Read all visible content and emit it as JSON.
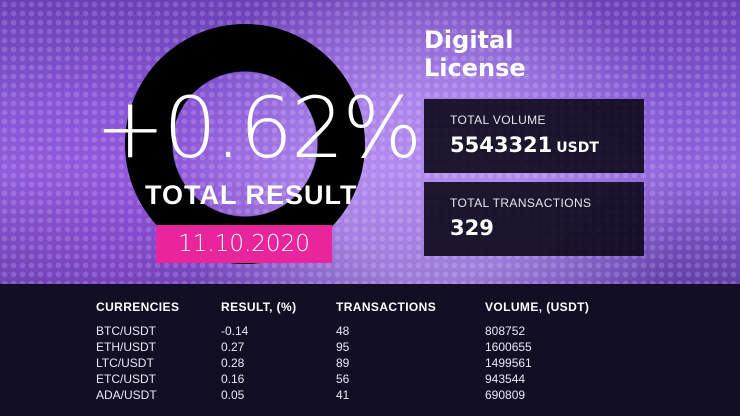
{
  "headline": {
    "percent": "+0.62%",
    "total_result": "TOTAL RESULT",
    "date": "11.10.2020"
  },
  "title": {
    "line1": "Digital",
    "line2": "License"
  },
  "stats": {
    "volume": {
      "label": "TOTAL VOLUME",
      "value": "5543321",
      "unit": "USDT"
    },
    "transactions": {
      "label": "TOTAL TRANSACTIONS",
      "value": "329"
    }
  },
  "table": {
    "headers": [
      "CURRENCIES",
      "RESULT, (%)",
      "TRANSACTIONS",
      "VOLUME, (USDT)"
    ],
    "rows": [
      [
        "BTC/USDT",
        "-0.14",
        "48",
        "808752"
      ],
      [
        "ETH/USDT",
        "0.27",
        "95",
        "1600655"
      ],
      [
        "LTC/USDT",
        "0.28",
        "89",
        "1499561"
      ],
      [
        "ETC/USDT",
        "0.16",
        "56",
        "943544"
      ],
      [
        "ADA/USDT",
        "0.05",
        "41",
        "690809"
      ]
    ]
  },
  "colors": {
    "accent_pink": "#e8259b",
    "panel_dark": "#120f24",
    "background_purple": "#8257d3"
  }
}
